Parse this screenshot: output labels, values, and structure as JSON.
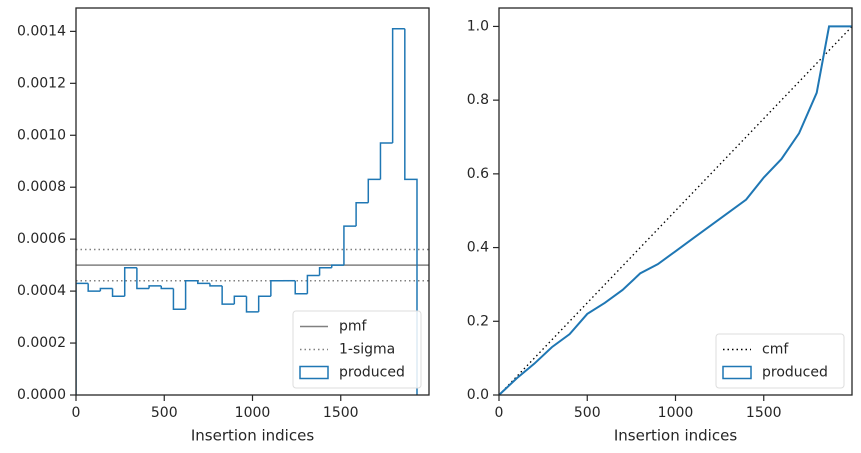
{
  "chart_data": [
    {
      "type": "histogram",
      "xlabel": "Insertion indices",
      "xlim": [
        0,
        2000
      ],
      "xticks": [
        0,
        500,
        1000,
        1500
      ],
      "ylim": [
        0,
        0.00149
      ],
      "yticks": [
        {
          "value": 0,
          "label": "0.0000"
        },
        0.0002,
        0.0004,
        0.0006,
        0.0008,
        {
          "value": 0.001,
          "label": "0.0010"
        },
        0.0012,
        0.0014
      ],
      "legend": "lower right",
      "reference_lines": [
        {
          "name": "pmf",
          "color": "#808080",
          "linestyle": "solid",
          "y": [
            0.0005
          ]
        },
        {
          "name": "1-sigma",
          "color": "#808080",
          "linestyle": "dotted",
          "y": [
            0.00056,
            0.00044
          ]
        }
      ],
      "bins": [
        0,
        69,
        138,
        207,
        276,
        345,
        414,
        483,
        552,
        621,
        690,
        759,
        828,
        897,
        966,
        1035,
        1104,
        1173,
        1242,
        1311,
        1380,
        1449,
        1518,
        1587,
        1656,
        1725,
        1794,
        1863,
        1932
      ],
      "series": [
        {
          "name": "produced",
          "color": "#1f77b4",
          "legend": "patch",
          "values": [
            0.00043,
            0.0004,
            0.00041,
            0.00038,
            0.00049,
            0.00041,
            0.00042,
            0.00041,
            0.00033,
            0.00044,
            0.00043,
            0.00042,
            0.00035,
            0.00038,
            0.00032,
            0.00038,
            0.00044,
            0.00044,
            0.00039,
            0.00046,
            0.00049,
            0.0005,
            0.00065,
            0.00074,
            0.00083,
            0.00097,
            0.00141,
            0.00083
          ]
        }
      ]
    },
    {
      "type": "line",
      "xlabel": "Insertion indices",
      "xlim": [
        0,
        2000
      ],
      "xticks": [
        0,
        500,
        1000,
        1500
      ],
      "ylim": [
        0,
        1.05
      ],
      "yticks": [
        {
          "value": 0,
          "label": "0.0"
        },
        0.2,
        0.4,
        0.6,
        0.8,
        {
          "value": 1,
          "label": "1.0"
        }
      ],
      "legend": "lower right",
      "series": [
        {
          "name": "cmf",
          "color": "#000000",
          "linestyle": "dotted",
          "x": [
            0,
            2000
          ],
          "values": [
            0,
            1
          ]
        },
        {
          "name": "produced",
          "color": "#1f77b4",
          "legend": "patch",
          "x": [
            0,
            100,
            200,
            300,
            400,
            500,
            600,
            700,
            800,
            900,
            1000,
            1100,
            1200,
            1300,
            1400,
            1500,
            1600,
            1700,
            1800,
            1870,
            1900,
            2000
          ],
          "values": [
            0,
            0.045,
            0.085,
            0.13,
            0.165,
            0.22,
            0.25,
            0.285,
            0.33,
            0.355,
            0.39,
            0.425,
            0.46,
            0.495,
            0.53,
            0.59,
            0.64,
            0.71,
            0.82,
            1,
            1,
            1
          ]
        }
      ]
    }
  ]
}
